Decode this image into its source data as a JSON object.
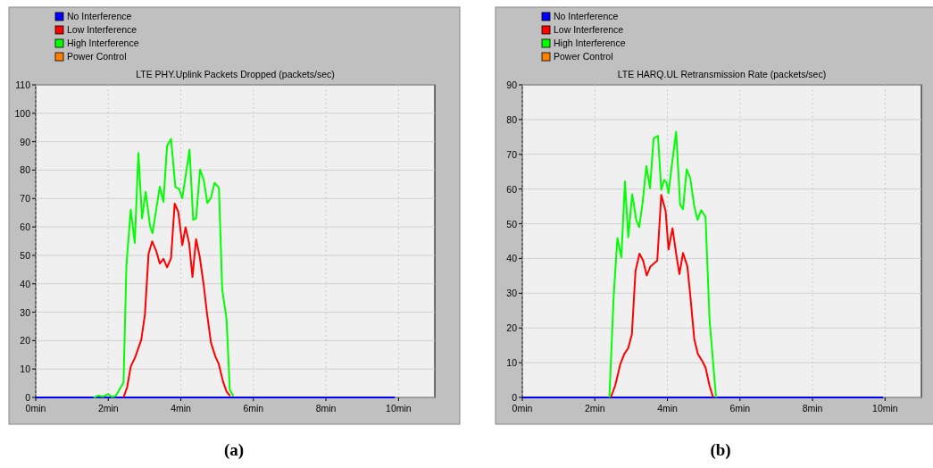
{
  "chart_data": [
    {
      "type": "line",
      "title": "LTE PHY.Uplink Packets Dropped (packets/sec)",
      "annotations": [
        "(a)"
      ],
      "legend": "top left",
      "grid": true,
      "marker": "none",
      "line_style": "solid",
      "xlim": [
        0,
        11
      ],
      "xticks": [
        {
          "value": 0,
          "label": "0min"
        },
        {
          "value": 2,
          "label": "2min"
        },
        {
          "value": 4,
          "label": "4min"
        },
        {
          "value": 6,
          "label": "6min"
        },
        {
          "value": 8,
          "label": "8min"
        },
        {
          "value": 10,
          "label": "10min"
        }
      ],
      "ylim": [
        0,
        110
      ],
      "yticks": [
        0,
        10,
        20,
        30,
        40,
        50,
        60,
        70,
        80,
        90,
        100,
        110
      ],
      "series": [
        {
          "name": "No Interference",
          "color": "#0000ff",
          "x": [
            0,
            9.9
          ],
          "values": [
            0,
            0
          ]
        },
        {
          "name": "Low Interference",
          "color": "#ff0000",
          "x": [
            2.42,
            2.52,
            2.62,
            2.74,
            2.91,
            3.01,
            3.11,
            3.21,
            3.32,
            3.42,
            3.52,
            3.62,
            3.73,
            3.83,
            3.93,
            4.04,
            4.13,
            4.23,
            4.32,
            4.42,
            4.52,
            4.63,
            4.72,
            4.83,
            4.96,
            5.04,
            5.16,
            5.26,
            5.36
          ],
          "values": [
            0,
            3.6,
            10.9,
            14.1,
            20.3,
            29.2,
            50.5,
            54.9,
            51.6,
            47.1,
            48.8,
            45.8,
            49,
            68.2,
            65.3,
            53.6,
            59.9,
            54.2,
            42.4,
            55.7,
            49.5,
            39.6,
            29.7,
            19.3,
            14.1,
            12,
            5.7,
            2.1,
            0.5
          ]
        },
        {
          "name": "High Interference",
          "color": "#00ff00",
          "x": [
            1.6,
            1.72,
            1.85,
            2.0,
            2.1,
            2.2,
            2.42,
            2.5,
            2.62,
            2.73,
            2.83,
            2.93,
            3.03,
            3.15,
            3.22,
            3.42,
            3.52,
            3.62,
            3.73,
            3.85,
            3.95,
            4.04,
            4.24,
            4.34,
            4.42,
            4.53,
            4.63,
            4.73,
            4.83,
            4.93,
            5.05,
            5.14,
            5.26,
            5.35,
            5.45
          ],
          "values": [
            0,
            0.6,
            0.3,
            1.2,
            0.2,
            0.5,
            5.2,
            46.4,
            66.1,
            54.4,
            86,
            63,
            72.4,
            60.4,
            57.8,
            74.2,
            68.8,
            88.5,
            91,
            74,
            73.4,
            70.1,
            87.2,
            62.5,
            63,
            80.2,
            76.6,
            68.4,
            70.3,
            75.5,
            73.8,
            38,
            27.6,
            2.6,
            0.5
          ]
        },
        {
          "name": "Power Control",
          "color": "#ff8000"
        }
      ]
    },
    {
      "type": "line",
      "title": "LTE HARQ.UL Retransmission Rate (packets/sec)",
      "annotations": [
        "(b)"
      ],
      "legend": "top left",
      "grid": true,
      "marker": "none",
      "line_style": "solid",
      "xlim": [
        0,
        11
      ],
      "xticks": [
        {
          "value": 0,
          "label": "0min"
        },
        {
          "value": 2,
          "label": "2min"
        },
        {
          "value": 4,
          "label": "4min"
        },
        {
          "value": 6,
          "label": "6min"
        },
        {
          "value": 8,
          "label": "8min"
        },
        {
          "value": 10,
          "label": "10min"
        }
      ],
      "ylim": [
        0,
        90
      ],
      "yticks": [
        0,
        10,
        20,
        30,
        40,
        50,
        60,
        70,
        80,
        90
      ],
      "series": [
        {
          "name": "No Interference",
          "color": "#0000ff",
          "x": [
            0,
            9.95
          ],
          "values": [
            0,
            0
          ]
        },
        {
          "name": "Low Interference",
          "color": "#ff0000",
          "x": [
            2.44,
            2.56,
            2.7,
            2.81,
            2.92,
            3.02,
            3.12,
            3.23,
            3.33,
            3.43,
            3.53,
            3.72,
            3.83,
            3.95,
            4.03,
            4.14,
            4.25,
            4.33,
            4.43,
            4.55,
            4.63,
            4.74,
            4.84,
            4.97,
            5.05,
            5.16,
            5.26
          ],
          "values": [
            0,
            3.4,
            9.5,
            12.5,
            14.2,
            18.2,
            36.4,
            41.4,
            39.4,
            35.1,
            37.7,
            39.4,
            58.3,
            53.7,
            42.6,
            48.7,
            40.7,
            35.5,
            41.6,
            37.7,
            29.4,
            16.8,
            12.5,
            10.3,
            8.6,
            3.4,
            0
          ]
        },
        {
          "name": "High Interference",
          "color": "#00ff00",
          "x": [
            2.4,
            2.52,
            2.62,
            2.73,
            2.83,
            2.92,
            3.03,
            3.14,
            3.22,
            3.31,
            3.42,
            3.52,
            3.62,
            3.74,
            3.83,
            3.91,
            3.97,
            4.03,
            4.11,
            4.24,
            4.35,
            4.43,
            4.53,
            4.63,
            4.74,
            4.83,
            4.93,
            5.05,
            5.16,
            5.34
          ],
          "values": [
            0,
            29.4,
            45.9,
            40.3,
            62.2,
            46.1,
            58.5,
            51.1,
            49,
            55.5,
            66.6,
            60.2,
            74.6,
            75.3,
            59.8,
            62.6,
            62,
            58.8,
            65.9,
            76.5,
            55.5,
            54.2,
            65.7,
            63.1,
            55,
            51.1,
            53.9,
            52,
            22.5,
            0
          ]
        },
        {
          "name": "Power Control",
          "color": "#ff8000"
        }
      ]
    }
  ]
}
